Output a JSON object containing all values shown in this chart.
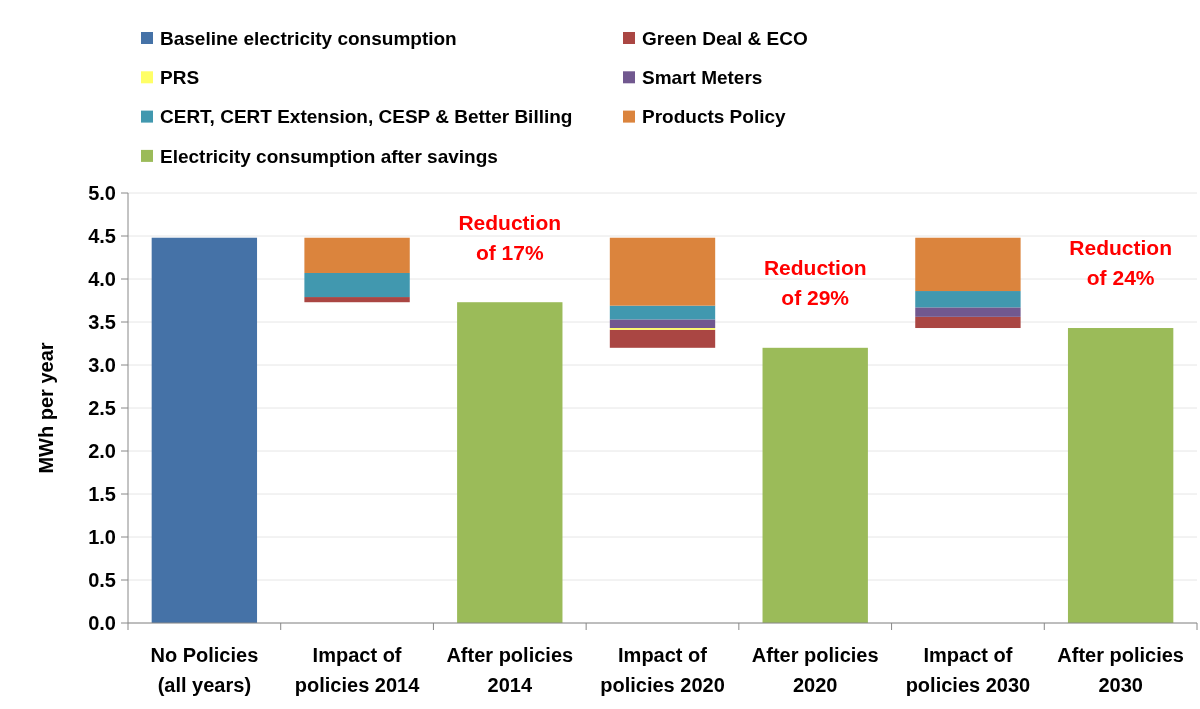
{
  "chart_data": {
    "type": "bar",
    "stacked": true,
    "categories": [
      "No Policies (all years)",
      "Impact of policies 2014",
      "After policies 2014",
      "Impact of policies 2020",
      "After policies 2020",
      "Impact of policies 2030",
      "After policies 2030"
    ],
    "series": [
      {
        "name": "Baseline electricity consumption",
        "color": "#4572a7",
        "values": [
          4.48,
          null,
          null,
          null,
          null,
          null,
          null
        ]
      },
      {
        "name": "Green Deal & ECO",
        "color": "#aa4643",
        "values": [
          null,
          0.06,
          null,
          0.21,
          null,
          0.13,
          null
        ],
        "base": [
          null,
          3.73,
          null,
          3.2,
          null,
          3.43,
          null
        ]
      },
      {
        "name": "PRS",
        "color": "#ffff66",
        "values": [
          null,
          null,
          null,
          0.02,
          null,
          null,
          null
        ]
      },
      {
        "name": "Smart Meters",
        "color": "#71588f",
        "values": [
          null,
          null,
          null,
          0.1,
          null,
          0.11,
          null
        ]
      },
      {
        "name": "CERT, CERT Extension, CESP & Better Billing",
        "color": "#4198af",
        "values": [
          null,
          0.28,
          null,
          0.16,
          null,
          0.19,
          null
        ]
      },
      {
        "name": "Products Policy",
        "color": "#db843d",
        "values": [
          null,
          0.41,
          null,
          0.79,
          null,
          0.62,
          null
        ]
      },
      {
        "name": "Electricity consumption after savings",
        "color": "#9bbb59",
        "values": [
          null,
          null,
          3.73,
          null,
          3.2,
          null,
          3.43
        ]
      }
    ],
    "ylabel": "MWh per year",
    "ylim": [
      0,
      5
    ],
    "yticks": [
      {
        "value": 0,
        "label": "0.0"
      },
      0.5,
      {
        "value": 1,
        "label": "1.0"
      },
      1.5,
      {
        "value": 2,
        "label": "2.0"
      },
      2.5,
      {
        "value": 3,
        "label": "3.0"
      },
      3.5,
      {
        "value": 4,
        "label": "4.0"
      },
      4.5,
      {
        "value": 5,
        "label": "5.0"
      }
    ],
    "grid": "y",
    "legend": "top",
    "annotations": [
      {
        "text": "Reduction of 17%",
        "x": "After policies 2014",
        "y": 3.73
      },
      {
        "text": "Reduction of 29%",
        "x": "After policies 2020",
        "y": 3.2
      },
      {
        "text": "Reduction of 24%",
        "x": "After policies 2030",
        "y": 3.43
      }
    ]
  }
}
